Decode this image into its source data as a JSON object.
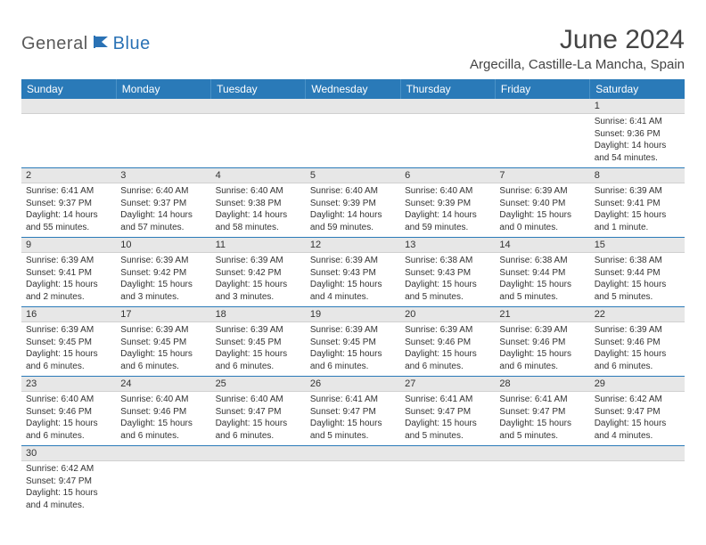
{
  "logo": {
    "part1": "General",
    "part2": "Blue"
  },
  "title": "June 2024",
  "location": "Argecilla, Castille-La Mancha, Spain",
  "colors": {
    "header_bg": "#2a7ab8",
    "header_text": "#ffffff",
    "daynum_bg": "#e7e7e7",
    "row_border": "#2a7ab8",
    "logo_blue": "#2a72b5",
    "logo_gray": "#5a5a5a"
  },
  "weekdays": [
    "Sunday",
    "Monday",
    "Tuesday",
    "Wednesday",
    "Thursday",
    "Friday",
    "Saturday"
  ],
  "weeks": [
    [
      null,
      null,
      null,
      null,
      null,
      null,
      {
        "n": "1",
        "sr": "6:41 AM",
        "ss": "9:36 PM",
        "dl": "14 hours and 54 minutes."
      }
    ],
    [
      {
        "n": "2",
        "sr": "6:41 AM",
        "ss": "9:37 PM",
        "dl": "14 hours and 55 minutes."
      },
      {
        "n": "3",
        "sr": "6:40 AM",
        "ss": "9:37 PM",
        "dl": "14 hours and 57 minutes."
      },
      {
        "n": "4",
        "sr": "6:40 AM",
        "ss": "9:38 PM",
        "dl": "14 hours and 58 minutes."
      },
      {
        "n": "5",
        "sr": "6:40 AM",
        "ss": "9:39 PM",
        "dl": "14 hours and 59 minutes."
      },
      {
        "n": "6",
        "sr": "6:40 AM",
        "ss": "9:39 PM",
        "dl": "14 hours and 59 minutes."
      },
      {
        "n": "7",
        "sr": "6:39 AM",
        "ss": "9:40 PM",
        "dl": "15 hours and 0 minutes."
      },
      {
        "n": "8",
        "sr": "6:39 AM",
        "ss": "9:41 PM",
        "dl": "15 hours and 1 minute."
      }
    ],
    [
      {
        "n": "9",
        "sr": "6:39 AM",
        "ss": "9:41 PM",
        "dl": "15 hours and 2 minutes."
      },
      {
        "n": "10",
        "sr": "6:39 AM",
        "ss": "9:42 PM",
        "dl": "15 hours and 3 minutes."
      },
      {
        "n": "11",
        "sr": "6:39 AM",
        "ss": "9:42 PM",
        "dl": "15 hours and 3 minutes."
      },
      {
        "n": "12",
        "sr": "6:39 AM",
        "ss": "9:43 PM",
        "dl": "15 hours and 4 minutes."
      },
      {
        "n": "13",
        "sr": "6:38 AM",
        "ss": "9:43 PM",
        "dl": "15 hours and 5 minutes."
      },
      {
        "n": "14",
        "sr": "6:38 AM",
        "ss": "9:44 PM",
        "dl": "15 hours and 5 minutes."
      },
      {
        "n": "15",
        "sr": "6:38 AM",
        "ss": "9:44 PM",
        "dl": "15 hours and 5 minutes."
      }
    ],
    [
      {
        "n": "16",
        "sr": "6:39 AM",
        "ss": "9:45 PM",
        "dl": "15 hours and 6 minutes."
      },
      {
        "n": "17",
        "sr": "6:39 AM",
        "ss": "9:45 PM",
        "dl": "15 hours and 6 minutes."
      },
      {
        "n": "18",
        "sr": "6:39 AM",
        "ss": "9:45 PM",
        "dl": "15 hours and 6 minutes."
      },
      {
        "n": "19",
        "sr": "6:39 AM",
        "ss": "9:45 PM",
        "dl": "15 hours and 6 minutes."
      },
      {
        "n": "20",
        "sr": "6:39 AM",
        "ss": "9:46 PM",
        "dl": "15 hours and 6 minutes."
      },
      {
        "n": "21",
        "sr": "6:39 AM",
        "ss": "9:46 PM",
        "dl": "15 hours and 6 minutes."
      },
      {
        "n": "22",
        "sr": "6:39 AM",
        "ss": "9:46 PM",
        "dl": "15 hours and 6 minutes."
      }
    ],
    [
      {
        "n": "23",
        "sr": "6:40 AM",
        "ss": "9:46 PM",
        "dl": "15 hours and 6 minutes."
      },
      {
        "n": "24",
        "sr": "6:40 AM",
        "ss": "9:46 PM",
        "dl": "15 hours and 6 minutes."
      },
      {
        "n": "25",
        "sr": "6:40 AM",
        "ss": "9:47 PM",
        "dl": "15 hours and 6 minutes."
      },
      {
        "n": "26",
        "sr": "6:41 AM",
        "ss": "9:47 PM",
        "dl": "15 hours and 5 minutes."
      },
      {
        "n": "27",
        "sr": "6:41 AM",
        "ss": "9:47 PM",
        "dl": "15 hours and 5 minutes."
      },
      {
        "n": "28",
        "sr": "6:41 AM",
        "ss": "9:47 PM",
        "dl": "15 hours and 5 minutes."
      },
      {
        "n": "29",
        "sr": "6:42 AM",
        "ss": "9:47 PM",
        "dl": "15 hours and 4 minutes."
      }
    ],
    [
      {
        "n": "30",
        "sr": "6:42 AM",
        "ss": "9:47 PM",
        "dl": "15 hours and 4 minutes."
      },
      null,
      null,
      null,
      null,
      null,
      null
    ]
  ],
  "labels": {
    "sunrise": "Sunrise:",
    "sunset": "Sunset:",
    "daylight": "Daylight:"
  }
}
